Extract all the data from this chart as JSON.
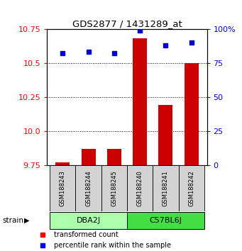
{
  "title": "GDS2877 / 1431289_at",
  "samples": [
    "GSM188243",
    "GSM188244",
    "GSM188245",
    "GSM188240",
    "GSM188241",
    "GSM188242"
  ],
  "groups": [
    {
      "name": "DBA2J",
      "color": "#aaffaa",
      "indices": [
        0,
        1,
        2
      ]
    },
    {
      "name": "C57BL6J",
      "color": "#44dd44",
      "indices": [
        3,
        4,
        5
      ]
    }
  ],
  "bar_values": [
    9.77,
    9.87,
    9.87,
    10.68,
    10.19,
    10.5
  ],
  "bar_base": 9.75,
  "percentile_values": [
    82,
    83,
    82,
    99,
    88,
    90
  ],
  "ylim_left": [
    9.75,
    10.75
  ],
  "ylim_right": [
    0,
    100
  ],
  "yticks_left": [
    9.75,
    10.0,
    10.25,
    10.5,
    10.75
  ],
  "yticks_right": [
    0,
    25,
    50,
    75,
    100
  ],
  "bar_color": "#cc0000",
  "marker_color": "#0000cc",
  "label_tc": "transformed count",
  "label_pr": "percentile rank within the sample",
  "group_colors": [
    "#aaffaa",
    "#44dd44"
  ],
  "label_fontsize": 7,
  "tick_fontsize": 8,
  "bar_width": 0.55
}
